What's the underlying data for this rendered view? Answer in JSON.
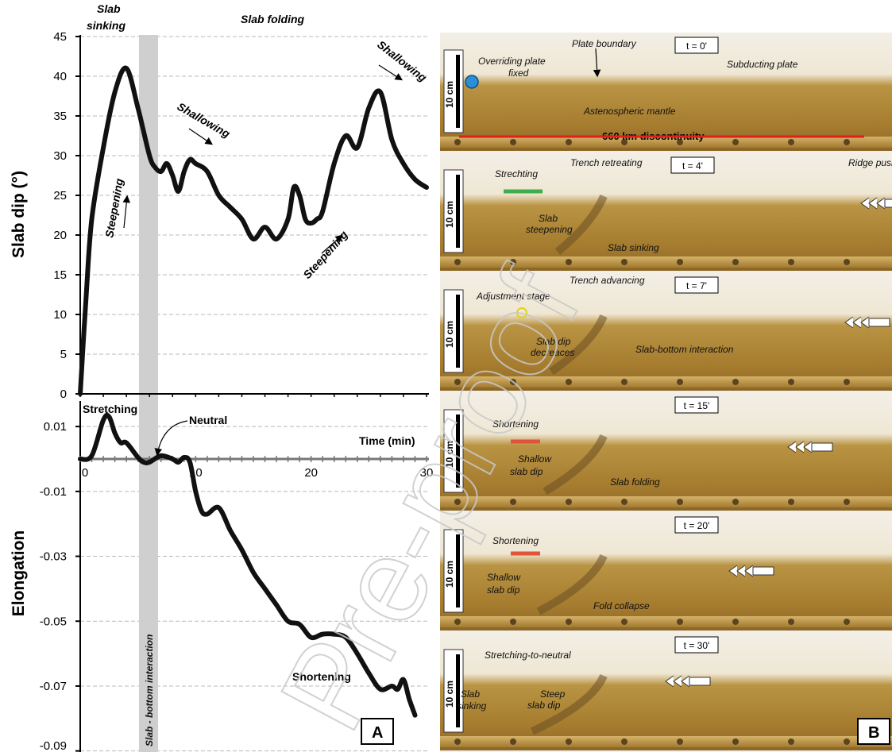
{
  "chart_data": [
    {
      "type": "line",
      "ylabel": "Slab dip (°)",
      "ylim": [
        0,
        45
      ],
      "xlim": [
        0,
        30
      ],
      "yticks": [
        "0",
        "5",
        "10",
        "15",
        "20",
        "25",
        "30",
        "35",
        "40",
        "45"
      ],
      "grid": "horizontal dashed",
      "series": [
        {
          "x": [
            0,
            0.5,
            1,
            2,
            3,
            4,
            5,
            6,
            6.5,
            7,
            7.5,
            8,
            8.5,
            9,
            9.5,
            10,
            11,
            12,
            13,
            14,
            15,
            16,
            17,
            18,
            18.5,
            19,
            19.5,
            20,
            20.5,
            21,
            22,
            23,
            24,
            25,
            26,
            27,
            28,
            29,
            30
          ],
          "y": [
            0,
            12,
            22,
            31,
            38,
            41,
            36,
            30,
            28.5,
            28,
            29,
            27.5,
            25.5,
            28,
            29.5,
            29,
            28,
            25,
            23.5,
            22,
            19.5,
            21,
            19.5,
            22,
            26,
            25,
            22,
            21.5,
            22,
            23,
            29,
            32.5,
            31,
            36,
            38,
            32,
            29,
            27,
            26
          ]
        }
      ],
      "annotations": [
        "Slab sinking",
        "Slab folding",
        "Shallowing",
        "Shallowing",
        "Steepening",
        "Steepening"
      ]
    },
    {
      "type": "line",
      "ylabel": "Elongation",
      "xlabel": "Time (min)",
      "xlim": [
        0,
        30
      ],
      "ylim": [
        -0.09,
        0.015
      ],
      "xticks": [
        "0",
        "10",
        "20",
        "30"
      ],
      "yticks": [
        "0.01",
        "-0.01",
        "-0.03",
        "-0.05",
        "-0.07",
        "-0.09"
      ],
      "grid": "horizontal dashed",
      "series": [
        {
          "x": [
            0,
            1,
            2,
            2.5,
            3,
            3.5,
            4,
            5,
            5.5,
            6,
            7,
            8,
            8.5,
            9,
            9.5,
            10,
            10.5,
            11,
            12,
            13,
            14,
            15,
            16,
            17,
            18,
            19,
            20,
            21,
            22,
            23,
            24,
            25,
            26,
            27,
            27.5,
            28,
            28.5,
            29
          ],
          "y": [
            0,
            0.001,
            0.012,
            0.013,
            0.008,
            0.005,
            0.005,
            0.0005,
            -0.001,
            -0.001,
            0.001,
            0,
            -0.001,
            0.0005,
            -0.001,
            -0.01,
            -0.016,
            -0.017,
            -0.015,
            -0.022,
            -0.028,
            -0.035,
            -0.04,
            -0.045,
            -0.05,
            -0.051,
            -0.055,
            -0.054,
            -0.054,
            -0.055,
            -0.06,
            -0.066,
            -0.071,
            -0.07,
            -0.071,
            -0.068,
            -0.074,
            -0.079
          ]
        }
      ],
      "annotations": [
        "Stretching",
        "Neutral",
        "Shortening",
        "Slab - bottom interaction"
      ]
    }
  ],
  "top_labels": {
    "sinking_1": "Slab",
    "sinking_2": "sinking",
    "folding": "Slab folding"
  },
  "panel_a": {
    "letter": "A",
    "band_label": "Slab - bottom interaction",
    "stretching": "Stretching",
    "neutral": "Neutral",
    "shortening": "Shortening",
    "time_label": "Time (min)"
  },
  "panel_b": {
    "letter": "B",
    "scale_label": "10 cm",
    "frames": [
      {
        "time": "t = 0'",
        "labels": [
          "Plate boundary",
          "Overriding plate",
          "fixed",
          "Subducting plate",
          "Astenospheric mantle",
          "660 km discontinuity"
        ]
      },
      {
        "time": "t = 4'",
        "labels": [
          "Strechting",
          "Trench retreating",
          "Ridge push",
          "Slab",
          "steepening",
          "Slab sinking"
        ]
      },
      {
        "time": "t = 7'",
        "labels": [
          "Trench advancing",
          "Adjustment stage",
          "Slab dip",
          "decreaces",
          "Slab-bottom interaction"
        ]
      },
      {
        "time": "t = 15'",
        "labels": [
          "Shortening",
          "Shallow",
          "slab dip",
          "Slab folding"
        ]
      },
      {
        "time": "t = 20'",
        "labels": [
          "Shortening",
          "Shallow",
          "slab dip",
          "Fold collapse"
        ]
      },
      {
        "time": "t = 30'",
        "labels": [
          "Stretching-to-neutral",
          "Slab",
          "sinking",
          "Steep",
          "slab dip"
        ]
      }
    ]
  },
  "watermark": "Pre-proof",
  "colors": {
    "curve": "#111111",
    "band": "#cfcfcf",
    "tank": "#b08a3a",
    "mantle_line": "#e0201a",
    "stretch_arrow": "#3fae4a",
    "shorten_arrow": "#e0553a"
  }
}
